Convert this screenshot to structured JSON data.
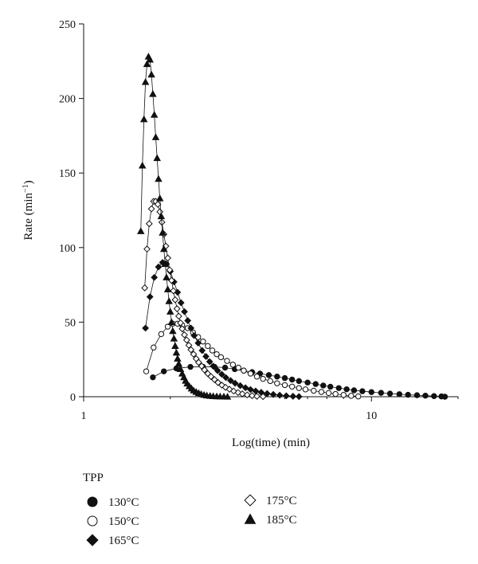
{
  "chart_data": {
    "type": "scatter",
    "title": "",
    "xlabel": "Log(time) (min)",
    "ylabel_main": "Rate (min",
    "ylabel_sup": "−1",
    "ylabel_close": ")",
    "xscale": "log",
    "xlim": [
      1,
      20
    ],
    "ylim": [
      0,
      250
    ],
    "xticks": [
      {
        "value": 1,
        "label": "1"
      },
      {
        "value": 10,
        "label": "10"
      }
    ],
    "yticks": [
      0,
      50,
      100,
      150,
      200,
      250
    ],
    "grid": false,
    "legend": {
      "placement": "bottom-left",
      "title": "TPP",
      "entries": [
        "130°C",
        "150°C",
        "165°C",
        "175°C",
        "185°C"
      ]
    },
    "series": [
      {
        "name": "130°C",
        "marker": "filled-circle",
        "x": [
          1.74,
          1.9,
          2.1,
          2.35,
          2.6,
          2.85,
          3.1,
          3.35,
          3.6,
          3.85,
          4.1,
          4.4,
          4.7,
          5.0,
          5.3,
          5.6,
          6.0,
          6.4,
          6.8,
          7.2,
          7.7,
          8.2,
          8.7,
          9.3,
          10.0,
          10.8,
          11.6,
          12.5,
          13.4,
          14.4,
          15.4,
          16.5,
          17.5,
          18.0
        ],
        "y": [
          13,
          17,
          19,
          20,
          20,
          20,
          19.5,
          18.5,
          17.5,
          16.5,
          15.5,
          14.5,
          13.5,
          12.5,
          11.5,
          10.5,
          9.5,
          8.5,
          7.5,
          6.7,
          5.8,
          5.0,
          4.3,
          3.7,
          3.1,
          2.6,
          2.1,
          1.7,
          1.3,
          1.0,
          0.7,
          0.4,
          0.2,
          0.0
        ]
      },
      {
        "name": "150°C",
        "marker": "open-circle",
        "x": [
          1.65,
          1.75,
          1.86,
          1.96,
          2.04,
          2.12,
          2.2,
          2.3,
          2.4,
          2.5,
          2.6,
          2.7,
          2.8,
          2.9,
          3.0,
          3.15,
          3.3,
          3.45,
          3.6,
          3.8,
          4.0,
          4.2,
          4.45,
          4.7,
          5.0,
          5.3,
          5.6,
          5.9,
          6.3,
          6.7,
          7.1,
          7.5,
          8.0,
          8.5,
          9.0
        ],
        "y": [
          17,
          33,
          42,
          47,
          49,
          49,
          48,
          46,
          43,
          40,
          37,
          34,
          31,
          28.5,
          26.5,
          24,
          21.5,
          19.5,
          17.5,
          15.5,
          13.5,
          12,
          10.5,
          9,
          7.8,
          6.8,
          5.8,
          4.9,
          4.0,
          3.2,
          2.5,
          1.8,
          1.2,
          0.6,
          0.2
        ]
      },
      {
        "name": "165°C",
        "marker": "filled-diamond",
        "x": [
          1.64,
          1.7,
          1.76,
          1.82,
          1.88,
          1.94,
          2.0,
          2.06,
          2.12,
          2.18,
          2.24,
          2.3,
          2.36,
          2.42,
          2.5,
          2.58,
          2.66,
          2.74,
          2.82,
          2.92,
          3.02,
          3.12,
          3.24,
          3.36,
          3.5,
          3.65,
          3.8,
          3.96,
          4.14,
          4.34,
          4.56,
          4.8,
          5.06,
          5.34,
          5.6
        ],
        "y": [
          46,
          67,
          80,
          87,
          90,
          89,
          84,
          77,
          70,
          63,
          57,
          51,
          46,
          41,
          36,
          31,
          27,
          23.5,
          20.5,
          17.5,
          15,
          12.8,
          10.8,
          9,
          7.4,
          6,
          4.8,
          3.8,
          2.9,
          2.1,
          1.5,
          1.0,
          0.6,
          0.3,
          0.1
        ]
      },
      {
        "name": "175°C",
        "marker": "open-diamond",
        "x": [
          1.63,
          1.66,
          1.69,
          1.72,
          1.75,
          1.78,
          1.81,
          1.84,
          1.87,
          1.9,
          1.93,
          1.96,
          1.99,
          2.02,
          2.05,
          2.08,
          2.11,
          2.14,
          2.17,
          2.2,
          2.24,
          2.28,
          2.32,
          2.36,
          2.41,
          2.46,
          2.51,
          2.57,
          2.63,
          2.7,
          2.77,
          2.85,
          2.93,
          3.02,
          3.11,
          3.21,
          3.32,
          3.44,
          3.56,
          3.7,
          3.85,
          4.0,
          4.2
        ],
        "y": [
          73,
          99,
          116,
          126,
          131,
          131,
          129,
          124,
          117,
          109,
          101,
          93,
          85,
          78,
          71,
          65,
          59,
          54,
          49.5,
          45.5,
          41.5,
          38,
          34.5,
          31.5,
          28.5,
          25.5,
          23,
          20.5,
          18,
          15.5,
          13.5,
          11.5,
          9.5,
          7.8,
          6.3,
          5.0,
          3.8,
          2.8,
          1.9,
          1.2,
          0.7,
          0.3,
          0.1
        ]
      },
      {
        "name": "185°C",
        "marker": "filled-triangle",
        "x": [
          1.58,
          1.6,
          1.62,
          1.64,
          1.66,
          1.68,
          1.7,
          1.72,
          1.74,
          1.76,
          1.78,
          1.8,
          1.82,
          1.84,
          1.86,
          1.88,
          1.9,
          1.92,
          1.94,
          1.96,
          1.98,
          2.0,
          2.02,
          2.04,
          2.06,
          2.08,
          2.1,
          2.12,
          2.14,
          2.17,
          2.2,
          2.23,
          2.26,
          2.29,
          2.33,
          2.37,
          2.41,
          2.46,
          2.51,
          2.56,
          2.62,
          2.68,
          2.75,
          2.82,
          2.9,
          2.98,
          3.07,
          3.16
        ],
        "y": [
          111,
          155,
          186,
          211,
          223,
          228,
          226,
          216,
          203,
          189,
          174,
          160,
          146,
          133,
          121,
          110,
          99,
          89,
          80,
          72,
          64,
          57,
          50,
          44,
          39,
          34,
          29.5,
          25.5,
          22,
          18.5,
          15.5,
          13,
          10.7,
          8.8,
          7.0,
          5.5,
          4.2,
          3.2,
          2.4,
          1.7,
          1.2,
          0.8,
          0.5,
          0.3,
          0.2,
          0.1,
          0.05,
          0.0
        ]
      }
    ]
  }
}
